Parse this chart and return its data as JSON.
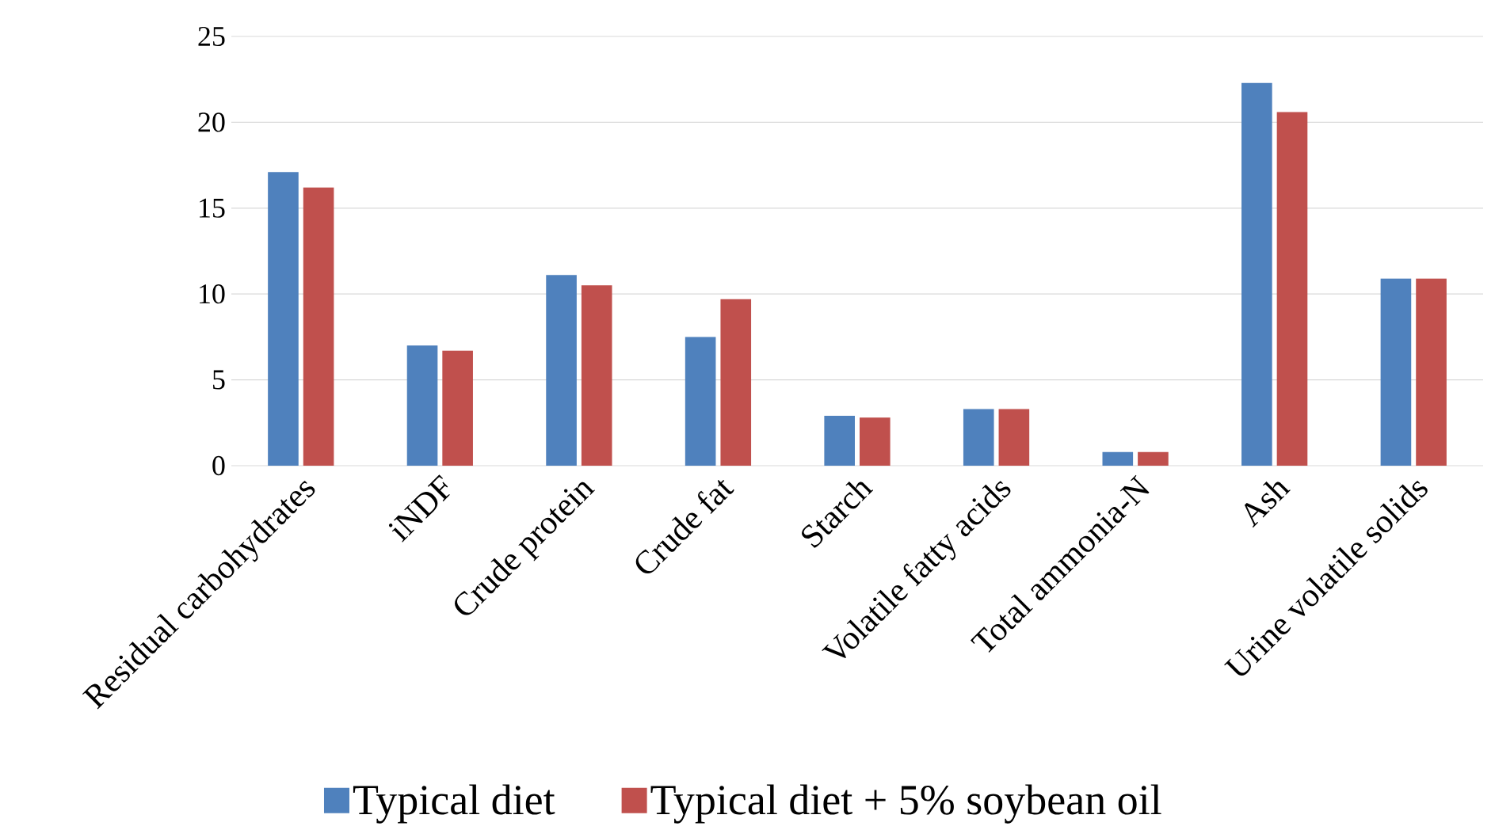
{
  "chart_data": {
    "type": "bar",
    "categories": [
      "Residual carbohydrates",
      "iNDF",
      "Crude protein",
      "Crude fat",
      "Starch",
      "Volatile fatty acids",
      "Total ammonia-N",
      "Ash",
      "Urine volatile solids"
    ],
    "series": [
      {
        "name": "Typical diet",
        "color": "#4f81bd",
        "values": [
          17.1,
          7.0,
          11.1,
          7.5,
          2.9,
          3.3,
          0.8,
          22.3,
          10.9
        ]
      },
      {
        "name": "Typical diet + 5% soybean oil",
        "color": "#c0504d",
        "values": [
          16.2,
          6.7,
          10.5,
          9.7,
          2.8,
          3.3,
          0.8,
          20.6,
          10.9
        ]
      }
    ],
    "ylim": [
      0,
      25
    ],
    "yticks": [
      0,
      5,
      10,
      15,
      20,
      25
    ],
    "grid": "y",
    "legend": "bottom"
  }
}
